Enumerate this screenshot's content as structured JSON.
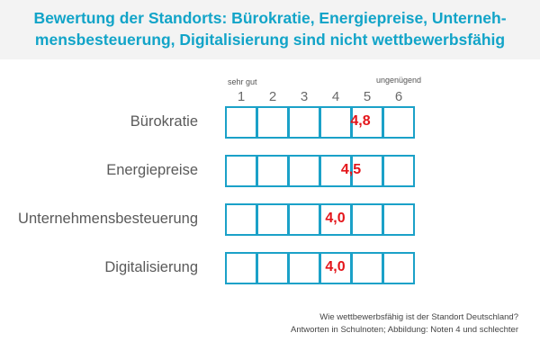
{
  "title": {
    "line1": "Bewertung der Standorts: Bürokratie, Energiepreise, Unterneh-",
    "line2": "mensbesteuerung, Digitalisierung sind nicht wettbewerbsfähig"
  },
  "scale": {
    "low_label": "sehr gut",
    "high_label": "ungenügend"
  },
  "footnote": {
    "line1": "Wie wettbewerbsfähig ist der Standort Deutschland?",
    "line2": "Antworten in Schulnoten; Abbildung: Noten 4 und schlechter"
  },
  "colors": {
    "title": "#12a4c8",
    "box_border": "#1ba1c8",
    "marker": "#e4151a"
  },
  "chart_data": {
    "type": "bar",
    "title": "Bewertung der Standorts: Bürokratie, Energiepreise, Unternehmensbesteuerung, Digitalisierung sind nicht wettbewerbsfähig",
    "categories": [
      "Bürokratie",
      "Energiepreise",
      "Unternehmensbesteuerung",
      "Digitalisierung"
    ],
    "values": [
      4.8,
      4.5,
      4.0,
      4.0
    ],
    "value_labels": [
      "4,8",
      "4,5",
      "4,0",
      "4,0"
    ],
    "x_ticks": [
      "1",
      "2",
      "3",
      "4",
      "5",
      "6"
    ],
    "xlim": [
      1,
      6
    ],
    "grid": false
  }
}
